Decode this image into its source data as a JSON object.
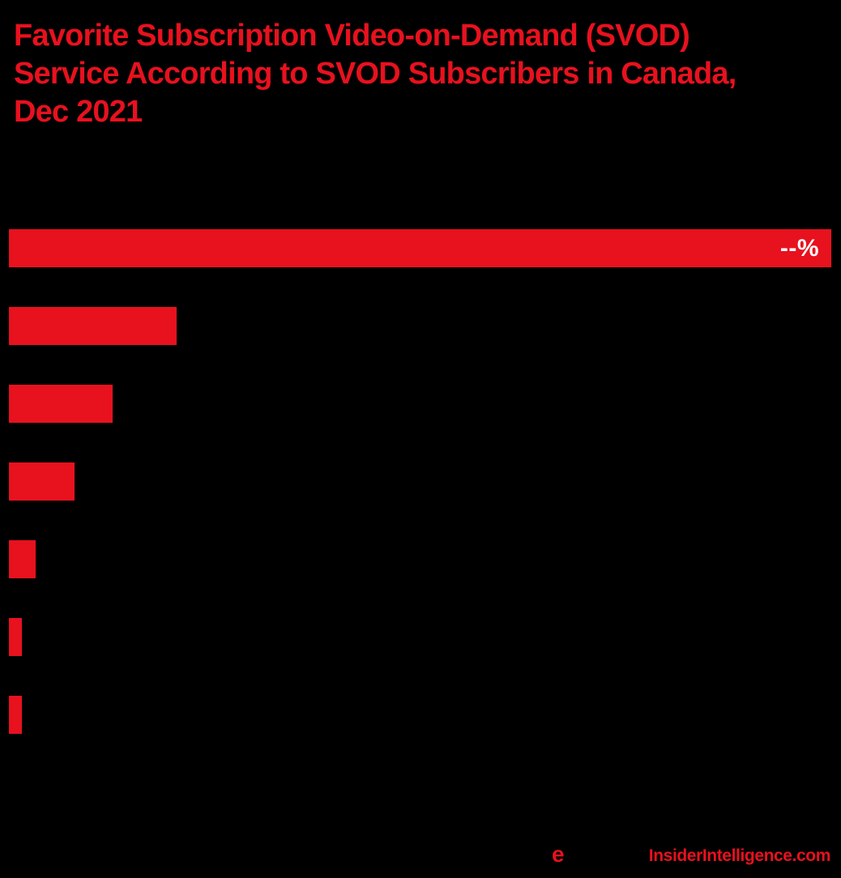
{
  "page": {
    "background_color": "#000000",
    "accent_color": "#e8111e"
  },
  "header": {
    "title_lines": [
      "Favorite Subscription Video-on-Demand (SVOD)",
      "Service According to SVOD Subscribers in Canada,",
      "Dec 2021"
    ],
    "title_color": "#e8111e"
  },
  "chart_data": {
    "type": "bar",
    "orientation": "horizontal",
    "title": "Favorite Subscription Video-on-Demand (SVOD) Service According to SVOD Subscribers in Canada, Dec 2021",
    "bar_color": "#e8111e",
    "value_label_color": "#ffffff",
    "categories": [
      "",
      "",
      "",
      "",
      "",
      "",
      ""
    ],
    "relative_widths_pct": [
      100,
      20.4,
      12.6,
      8.0,
      3.3,
      1.6,
      1.6
    ],
    "value_labels": [
      "--%",
      "",
      "",
      "",
      "",
      "",
      ""
    ],
    "grid": false,
    "legend": false
  },
  "footer": {
    "emarketer_logo_e": "e",
    "site_url": "InsiderIntelligence.com",
    "color": "#e8111e"
  }
}
